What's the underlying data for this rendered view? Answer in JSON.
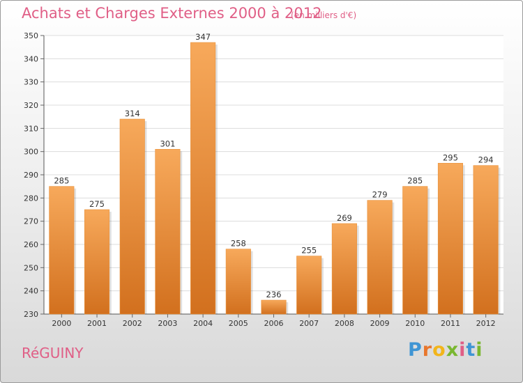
{
  "header": {
    "title": "Achats et Charges Externes 2000 à 2012",
    "subtitle": "(en milliers d'€)"
  },
  "footer": {
    "city": "RéGUINY",
    "logo": [
      "P",
      "r",
      "o",
      "x",
      "i",
      "t",
      "i"
    ]
  },
  "colors": {
    "bar_light": "#f7a95b",
    "bar_dark": "#d2701e",
    "title": "#e05e86"
  },
  "chart_data": {
    "type": "bar",
    "title": "Achats et Charges Externes 2000 à 2012",
    "subtitle": "(en milliers d'€)",
    "xlabel": "",
    "ylabel": "",
    "categories": [
      "2000",
      "2001",
      "2002",
      "2003",
      "2004",
      "2005",
      "2006",
      "2007",
      "2008",
      "2009",
      "2010",
      "2011",
      "2012"
    ],
    "values": [
      285,
      275,
      314,
      301,
      347,
      258,
      236,
      255,
      269,
      279,
      285,
      295,
      294
    ],
    "ylim": [
      230,
      350
    ],
    "yticks": [
      230,
      240,
      250,
      260,
      270,
      280,
      290,
      300,
      310,
      320,
      330,
      340,
      350
    ],
    "grid": true,
    "legend": "none"
  }
}
